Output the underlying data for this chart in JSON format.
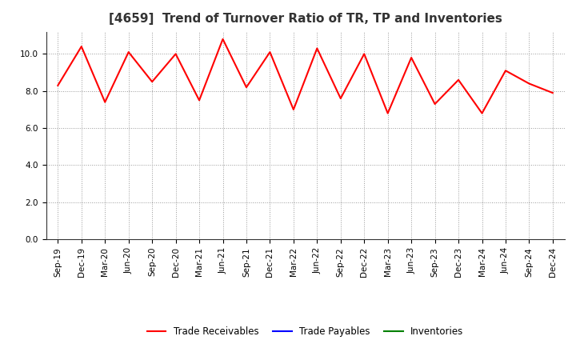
{
  "title": "[4659]  Trend of Turnover Ratio of TR, TP and Inventories",
  "x_labels": [
    "Sep-19",
    "Dec-19",
    "Mar-20",
    "Jun-20",
    "Sep-20",
    "Dec-20",
    "Mar-21",
    "Jun-21",
    "Sep-21",
    "Dec-21",
    "Mar-22",
    "Jun-22",
    "Sep-22",
    "Dec-22",
    "Mar-23",
    "Jun-23",
    "Sep-23",
    "Dec-23",
    "Mar-24",
    "Jun-24",
    "Sep-24",
    "Dec-24"
  ],
  "trade_receivables": [
    8.3,
    10.4,
    7.4,
    10.1,
    8.5,
    10.0,
    7.5,
    10.8,
    8.2,
    10.1,
    7.0,
    10.3,
    7.6,
    10.0,
    6.8,
    9.8,
    7.3,
    8.6,
    6.8,
    9.1,
    8.4,
    7.9
  ],
  "trade_payables": [
    null,
    null,
    null,
    null,
    null,
    null,
    null,
    null,
    null,
    null,
    null,
    null,
    null,
    null,
    null,
    null,
    null,
    null,
    null,
    null,
    null,
    null
  ],
  "inventories": [
    null,
    null,
    null,
    null,
    null,
    null,
    null,
    null,
    null,
    null,
    null,
    null,
    null,
    null,
    null,
    null,
    null,
    null,
    null,
    null,
    null,
    null
  ],
  "trade_receivables_color": "#ff0000",
  "trade_payables_color": "#0000ff",
  "inventories_color": "#008000",
  "ylim": [
    0,
    11.2
  ],
  "yticks": [
    0.0,
    2.0,
    4.0,
    6.0,
    8.0,
    10.0
  ],
  "background_color": "#ffffff",
  "grid_color": "#999999",
  "title_fontsize": 11,
  "title_color": "#333333",
  "tick_fontsize": 7.5,
  "legend_entries": [
    "Trade Receivables",
    "Trade Payables",
    "Inventories"
  ],
  "legend_fontsize": 8.5
}
